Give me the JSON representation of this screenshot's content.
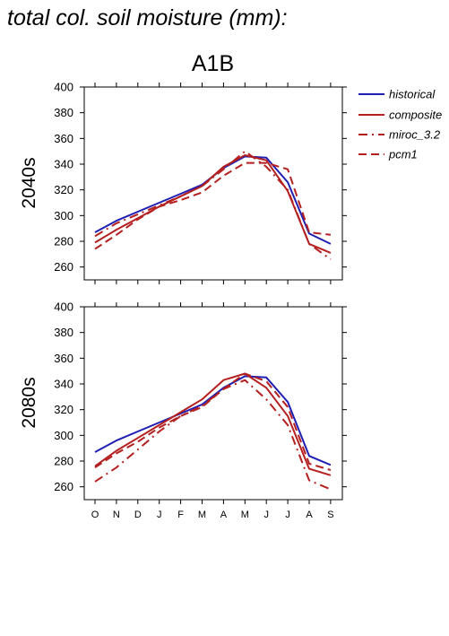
{
  "page": {
    "title": "total col. soil moisture (mm):",
    "scenario": "A1B"
  },
  "chart_data": [
    {
      "type": "line",
      "panel_label": "2040s",
      "categories": [
        "O",
        "N",
        "D",
        "J",
        "F",
        "M",
        "A",
        "M",
        "J",
        "J",
        "A",
        "S"
      ],
      "ylim": [
        250,
        400
      ],
      "yticks": [
        260,
        280,
        300,
        320,
        340,
        360,
        380,
        400
      ],
      "grid": false,
      "series": [
        {
          "name": "historical",
          "color": "#1f1fb4",
          "dash": "solid",
          "values": [
            287,
            296,
            303,
            310,
            317,
            324,
            337,
            346,
            345,
            326,
            286,
            278
          ]
        },
        {
          "name": "composite",
          "color": "#b41f1f",
          "dash": "solid",
          "values": [
            279,
            289,
            298,
            307,
            315,
            323,
            338,
            347,
            343,
            319,
            278,
            271
          ]
        },
        {
          "name": "miroc_3.2",
          "color": "#b41f1f",
          "dash": "dashdot",
          "values": [
            284,
            294,
            301,
            308,
            315,
            323,
            336,
            350,
            338,
            320,
            278,
            266
          ]
        },
        {
          "name": "pcm1",
          "color": "#b41f1f",
          "dash": "dash",
          "values": [
            274,
            285,
            297,
            307,
            312,
            318,
            331,
            341,
            341,
            336,
            287,
            285
          ]
        }
      ]
    },
    {
      "type": "line",
      "panel_label": "2080s",
      "categories": [
        "O",
        "N",
        "D",
        "J",
        "F",
        "M",
        "A",
        "M",
        "J",
        "J",
        "A",
        "S"
      ],
      "ylim": [
        250,
        400
      ],
      "yticks": [
        260,
        280,
        300,
        320,
        340,
        360,
        380,
        400
      ],
      "grid": false,
      "series": [
        {
          "name": "historical",
          "color": "#1f1fb4",
          "dash": "solid",
          "values": [
            287,
            296,
            303,
            310,
            317,
            324,
            337,
            346,
            345,
            326,
            284,
            277
          ]
        },
        {
          "name": "composite",
          "color": "#b41f1f",
          "dash": "solid",
          "values": [
            276,
            288,
            298,
            308,
            318,
            328,
            343,
            348,
            337,
            315,
            274,
            269
          ]
        },
        {
          "name": "miroc_3.2",
          "color": "#b41f1f",
          "dash": "dashdot",
          "values": [
            264,
            275,
            289,
            303,
            315,
            323,
            336,
            343,
            328,
            308,
            265,
            258
          ]
        },
        {
          "name": "pcm1",
          "color": "#b41f1f",
          "dash": "dash",
          "values": [
            275,
            286,
            295,
            306,
            315,
            322,
            336,
            348,
            342,
            322,
            278,
            273
          ]
        }
      ]
    }
  ]
}
